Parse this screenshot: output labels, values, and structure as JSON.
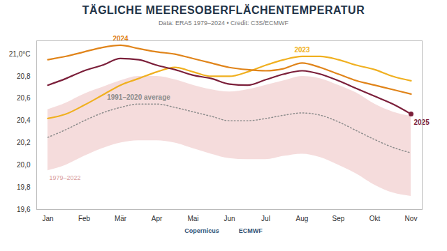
{
  "chart_data": {
    "type": "line",
    "title": "TÄGLICHE MEERESOBERFLÄCHENTEMPERATUR",
    "subtitle": "Data: ERA5 1979–2024 • Credit: C3S/ECMWF",
    "footer": [
      "Copernicus",
      "ECMWF"
    ],
    "categories": [
      "Jan",
      null,
      "Feb",
      null,
      "Mär",
      null,
      "Apr",
      null,
      "Mai",
      null,
      "Jun",
      null,
      "Jul",
      null,
      "Aug",
      null,
      "Sep",
      null,
      "Okt",
      null,
      "Nov"
    ],
    "ylim": [
      19.6,
      21.12
    ],
    "yticks": [
      {
        "value": 19.6,
        "label": "19,6"
      },
      {
        "value": 19.8,
        "label": "19,8"
      },
      {
        "value": 20.0,
        "label": "20,0"
      },
      {
        "value": 20.2,
        "label": "20,2"
      },
      {
        "value": 20.4,
        "label": "20,4"
      },
      {
        "value": 20.6,
        "label": "20,6"
      },
      {
        "value": 20.8,
        "label": "20,8"
      },
      {
        "value": 21.0,
        "label": "21,0°C"
      }
    ],
    "grid": false,
    "series": [
      {
        "name": "1979–2022",
        "type": "area",
        "color": "#f3d3d3",
        "lower": [
          19.95,
          20.0,
          20.08,
          20.15,
          20.2,
          20.22,
          20.22,
          20.2,
          20.15,
          20.1,
          20.06,
          20.05,
          20.05,
          20.08,
          20.1,
          20.07,
          20.0,
          19.92,
          19.82,
          19.75,
          19.72
        ],
        "upper": [
          20.5,
          20.56,
          20.64,
          20.7,
          20.76,
          20.8,
          20.8,
          20.77,
          20.72,
          20.68,
          20.66,
          20.68,
          20.72,
          20.76,
          20.8,
          20.78,
          20.72,
          20.65,
          20.55,
          20.48,
          20.44
        ]
      },
      {
        "name": "1991–2020 average",
        "type": "line",
        "color": "#8c8c8c",
        "line_style": "dotted",
        "values": [
          20.25,
          20.32,
          20.4,
          20.47,
          20.52,
          20.55,
          20.55,
          20.52,
          20.48,
          20.44,
          20.4,
          20.4,
          20.42,
          20.45,
          20.47,
          20.45,
          20.39,
          20.31,
          20.23,
          20.16,
          20.11
        ]
      },
      {
        "name": "2023",
        "type": "line",
        "color": "#f0b020",
        "values": [
          20.42,
          20.46,
          20.54,
          20.63,
          20.72,
          20.78,
          20.84,
          20.88,
          20.84,
          20.8,
          20.8,
          20.84,
          20.9,
          20.95,
          20.98,
          20.98,
          20.95,
          20.9,
          20.86,
          20.8,
          20.76
        ]
      },
      {
        "name": "2024",
        "type": "line",
        "color": "#e0841a",
        "values": [
          20.95,
          20.98,
          21.02,
          21.06,
          21.08,
          21.05,
          21.02,
          21.0,
          20.96,
          20.92,
          20.88,
          20.86,
          20.85,
          20.87,
          20.92,
          20.88,
          20.82,
          20.76,
          20.72,
          20.68,
          20.64
        ]
      },
      {
        "name": "2025",
        "type": "line",
        "color": "#7b1f3a",
        "marker": "circle",
        "values": [
          20.72,
          20.78,
          20.85,
          20.9,
          20.96,
          20.95,
          20.9,
          20.86,
          20.81,
          20.78,
          20.73,
          20.72,
          20.77,
          20.82,
          20.85,
          20.82,
          20.76,
          20.69,
          20.62,
          20.55,
          20.46
        ]
      }
    ]
  }
}
